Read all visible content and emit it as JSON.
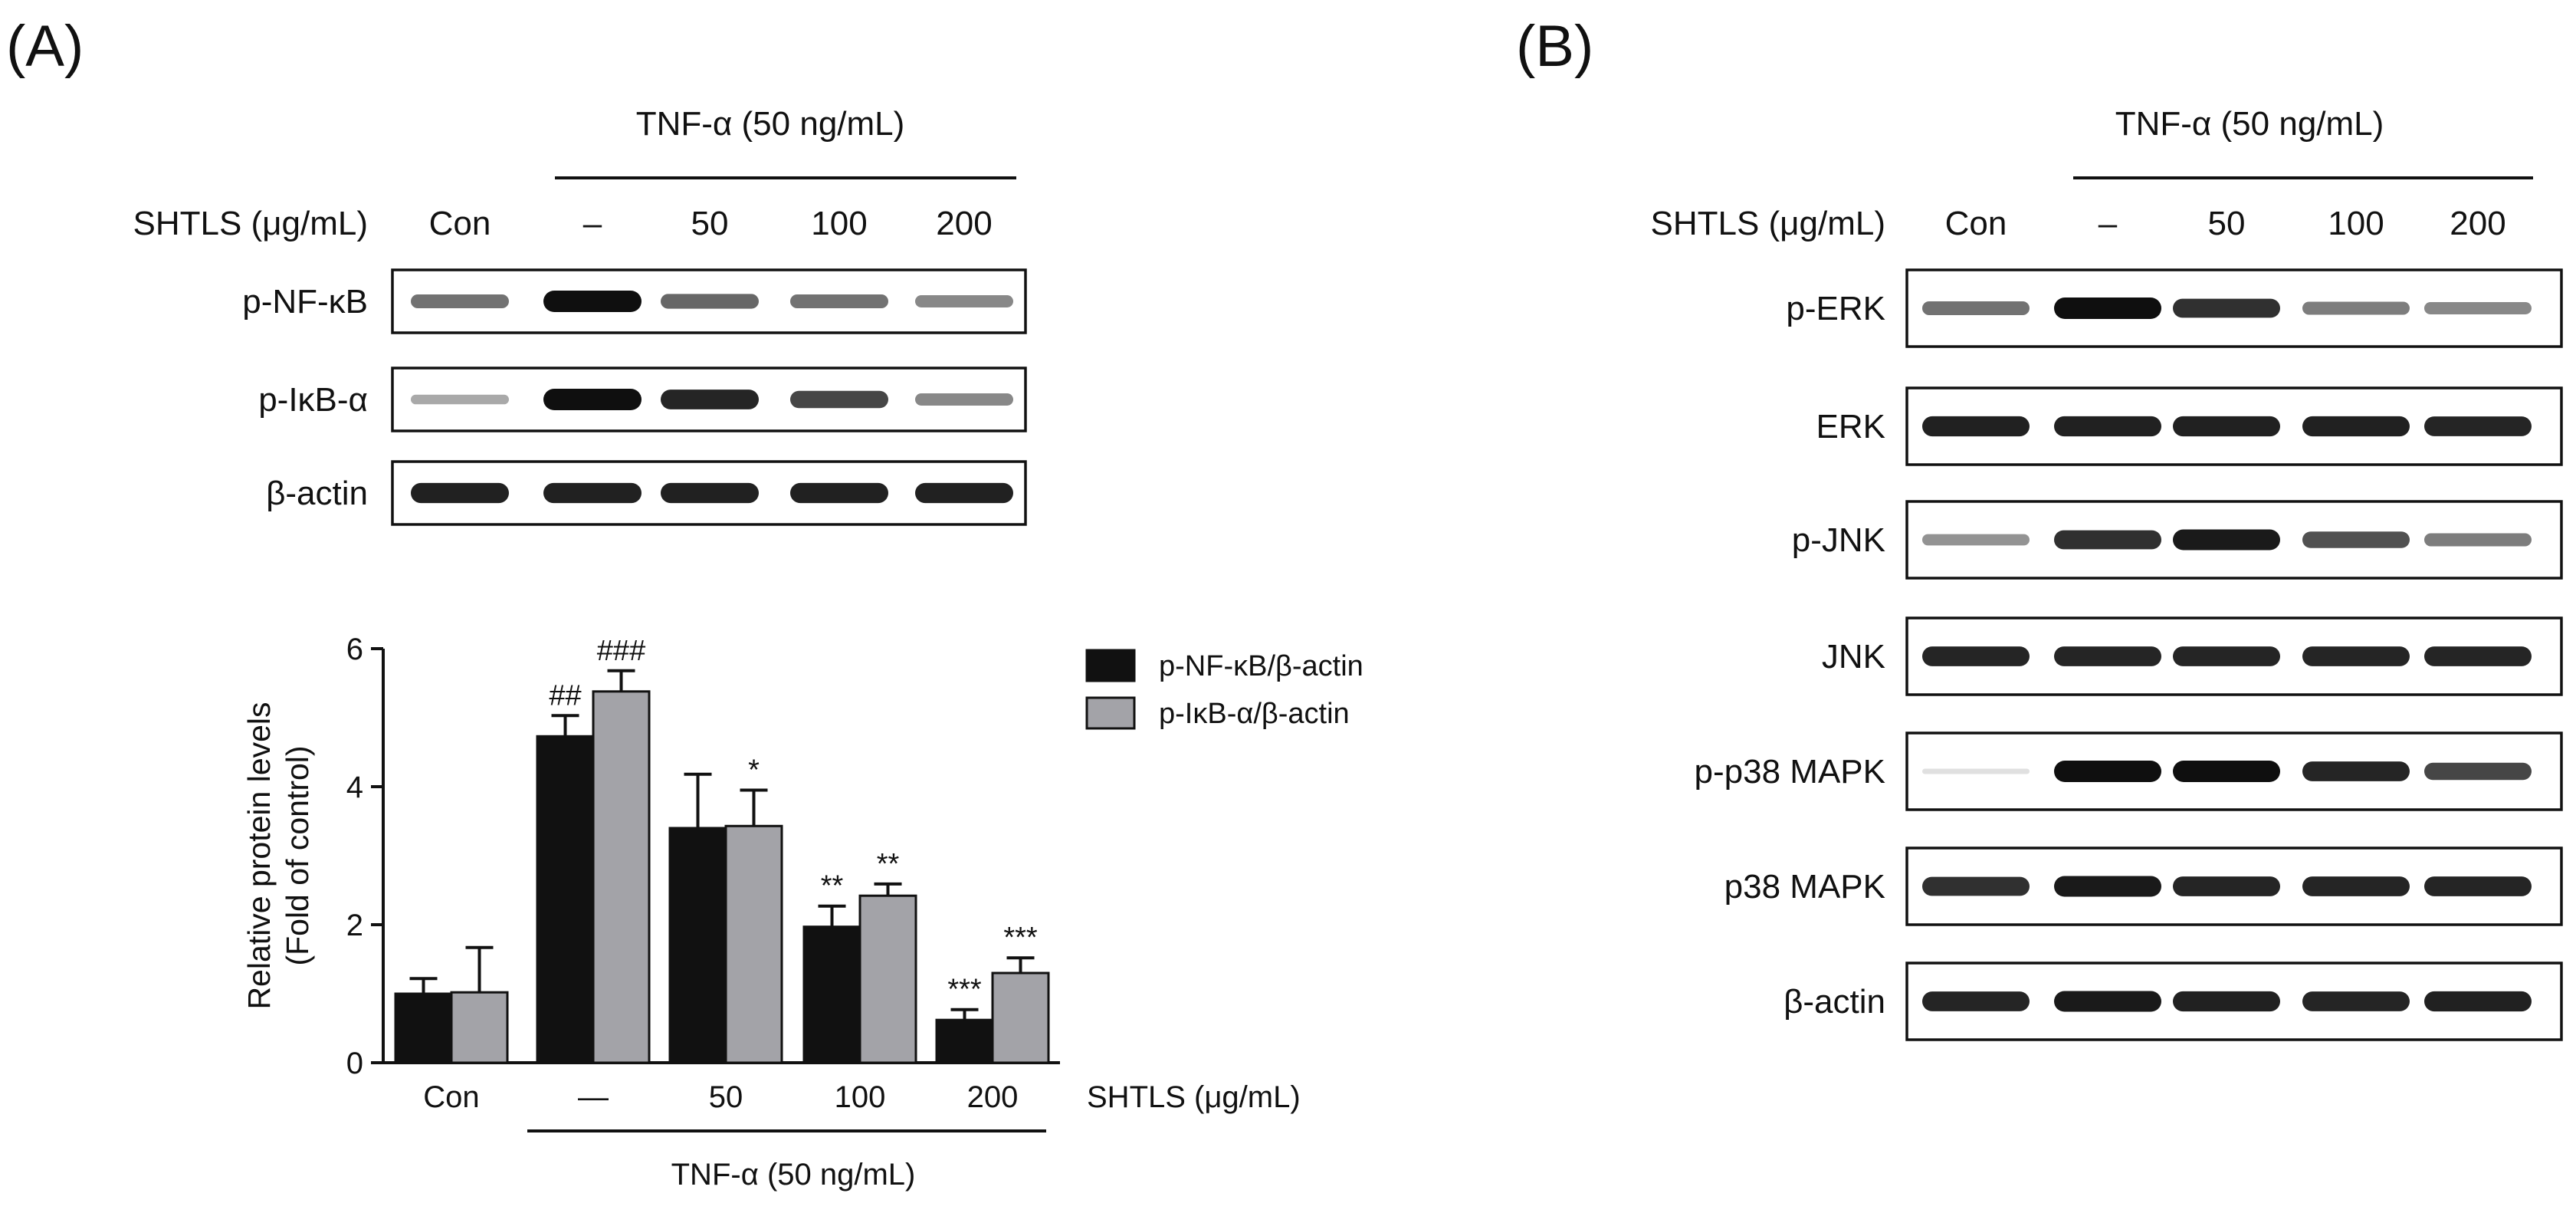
{
  "panel_a": {
    "label": "(A)",
    "treatment": "TNF-α (50 ng/mL)",
    "dose_label": "SHTLS (μg/mL)",
    "lanes": [
      "Con",
      "–",
      "50",
      "100",
      "200"
    ],
    "blots": [
      {
        "name": "p-NF-κB",
        "intensity": [
          0.55,
          1.0,
          0.6,
          0.55,
          0.45
        ]
      },
      {
        "name": "p-IκB-α",
        "intensity": [
          0.3,
          1.0,
          0.9,
          0.75,
          0.45
        ]
      },
      {
        "name": "β-actin",
        "intensity": [
          0.92,
          0.92,
          0.92,
          0.92,
          0.92
        ]
      }
    ]
  },
  "panel_b": {
    "label": "(B)",
    "treatment": "TNF-α (50 ng/mL)",
    "dose_label": "SHTLS (μg/mL)",
    "lanes": [
      "Con",
      "–",
      "50",
      "100",
      "200"
    ],
    "blots": [
      {
        "name": "p-ERK",
        "intensity": [
          0.55,
          1.0,
          0.85,
          0.5,
          0.45
        ]
      },
      {
        "name": "ERK",
        "intensity": [
          0.92,
          0.92,
          0.92,
          0.92,
          0.9
        ]
      },
      {
        "name": "p-JNK",
        "intensity": [
          0.4,
          0.85,
          0.95,
          0.7,
          0.5
        ]
      },
      {
        "name": "JNK",
        "intensity": [
          0.9,
          0.9,
          0.9,
          0.9,
          0.9
        ]
      },
      {
        "name": "p-p38 MAPK",
        "intensity": [
          0.05,
          1.0,
          1.0,
          0.9,
          0.75
        ]
      },
      {
        "name": "p38 MAPK",
        "intensity": [
          0.85,
          0.95,
          0.9,
          0.9,
          0.9
        ]
      },
      {
        "name": "β-actin",
        "intensity": [
          0.9,
          0.95,
          0.92,
          0.9,
          0.92
        ]
      }
    ]
  },
  "chart_data": {
    "type": "bar",
    "categories": [
      "Con",
      "—",
      "50",
      "100",
      "200"
    ],
    "series": [
      {
        "name": "p-NF-κB/β-actin",
        "color": "#111111",
        "values": [
          1.0,
          4.73,
          3.4,
          1.97,
          0.62
        ],
        "errors": [
          0.22,
          0.3,
          0.78,
          0.3,
          0.15
        ],
        "significance": [
          "",
          "##",
          "",
          "**",
          "***"
        ]
      },
      {
        "name": "p-IκB-α/β-actin",
        "color": "#a3a3a8",
        "values": [
          1.02,
          5.38,
          3.43,
          2.42,
          1.3
        ],
        "errors": [
          0.65,
          0.3,
          0.52,
          0.17,
          0.22
        ],
        "significance": [
          "",
          "###",
          "*",
          "**",
          "***"
        ]
      }
    ],
    "ylabel_line1": "Relative protein levels",
    "ylabel_line2": "(Fold of control)",
    "xlabel": "SHTLS (μg/mL)",
    "treatment_label": "TNF-α (50 ng/mL)",
    "ylim": [
      0,
      6
    ],
    "yticks": [
      0,
      2,
      4,
      6
    ],
    "legend_position": "right",
    "grid": false
  }
}
